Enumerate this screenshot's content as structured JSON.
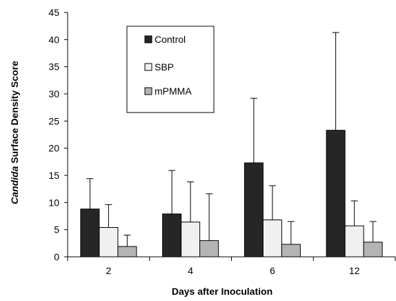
{
  "chart_data": {
    "type": "bar",
    "categories": [
      "2",
      "4",
      "6",
      "12"
    ],
    "series": [
      {
        "name": "Control",
        "color": "#262626",
        "values": [
          8.8,
          7.9,
          17.3,
          23.3
        ],
        "errors": [
          5.6,
          8.0,
          11.9,
          18.0
        ]
      },
      {
        "name": "SBP",
        "color": "#f0f0f0",
        "values": [
          5.4,
          6.4,
          6.8,
          5.7
        ],
        "errors": [
          4.2,
          7.4,
          6.3,
          4.6
        ]
      },
      {
        "name": "mPMMA",
        "color": "#b4b4b4",
        "values": [
          1.9,
          3.0,
          2.3,
          2.7
        ],
        "errors": [
          2.1,
          8.6,
          4.2,
          3.8
        ]
      }
    ],
    "title": "",
    "xlabel": "Days after Inoculation",
    "ylabel_italic": "Candida",
    "ylabel_rest": " Surface Density Score",
    "ylim": [
      0,
      45
    ],
    "yticks": [
      0,
      5,
      10,
      15,
      20,
      25,
      30,
      35,
      40,
      45
    ],
    "grid": false,
    "legend_position": "top-center",
    "error_bars": "upper only"
  }
}
